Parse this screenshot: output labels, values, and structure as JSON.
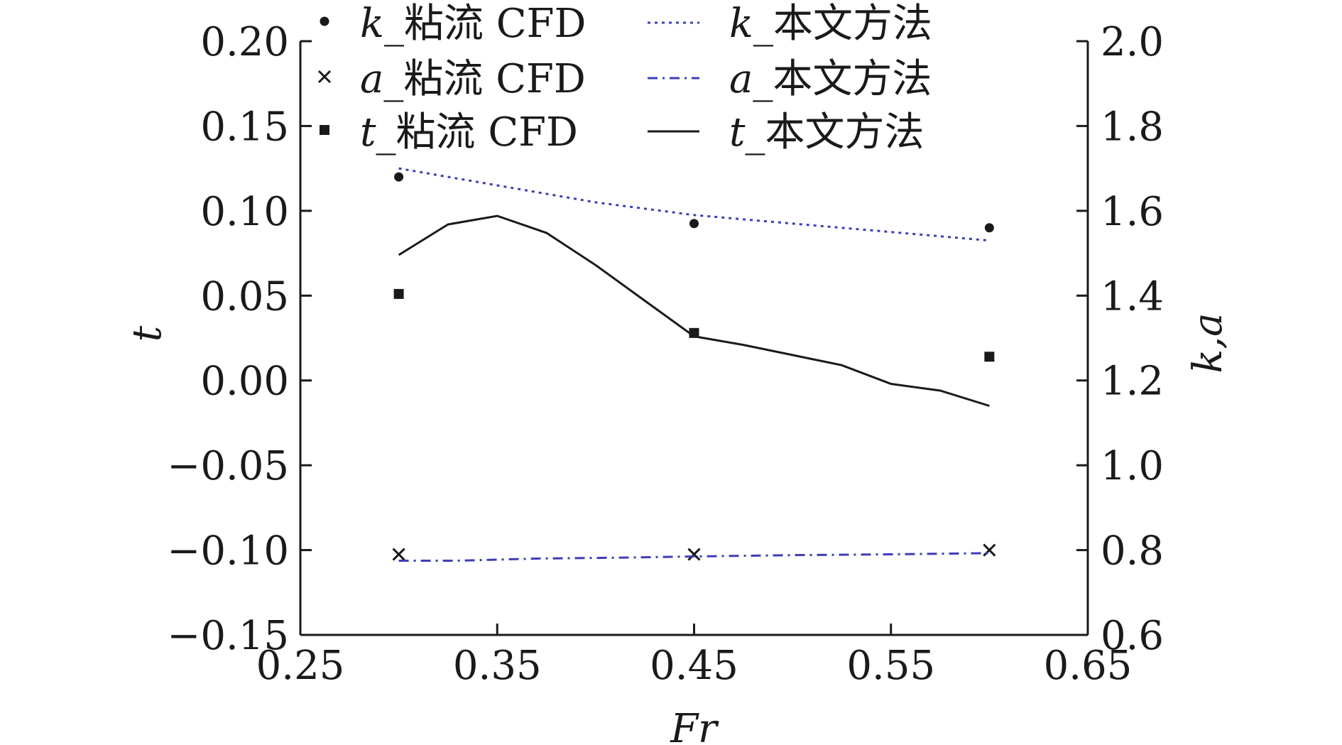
{
  "chart_data": {
    "type": "line",
    "xlabel": "Fr",
    "ylabel_left": "t",
    "ylabel_right": "k,a",
    "xlim": [
      0.25,
      0.65
    ],
    "ylim_left": [
      -0.15,
      0.2
    ],
    "ylim_right": [
      0.6,
      2.0
    ],
    "x_ticks": [
      "0.25",
      "0.35",
      "0.45",
      "0.55",
      "0.65"
    ],
    "y_left_ticks": [
      "0.20",
      "0.15",
      "0.10",
      "0.05",
      "0.00",
      "−0.05",
      "−0.10",
      "−0.15"
    ],
    "y_right_ticks": [
      "2.0",
      "1.8",
      "1.6",
      "1.4",
      "1.2",
      "1.0",
      "0.8",
      "0.6"
    ],
    "grid": false,
    "legend_position": "top",
    "series": [
      {
        "id": "k_cfd",
        "name": "k_粘流 CFD",
        "var": "k",
        "suffix": "_粘流 CFD",
        "kind": "scatter",
        "marker": "circle",
        "axis": "right",
        "color": "#1a1a1a",
        "x": [
          0.3,
          0.45,
          0.6
        ],
        "y": [
          1.68,
          1.57,
          1.56
        ]
      },
      {
        "id": "a_cfd",
        "name": "a_粘流 CFD",
        "var": "a",
        "suffix": "_粘流 CFD",
        "kind": "scatter",
        "marker": "x",
        "axis": "right",
        "color": "#1a1a1a",
        "x": [
          0.3,
          0.45,
          0.6
        ],
        "y": [
          0.79,
          0.79,
          0.8
        ]
      },
      {
        "id": "t_cfd",
        "name": "t_粘流 CFD",
        "var": "t",
        "suffix": "_粘流 CFD",
        "kind": "scatter",
        "marker": "square",
        "axis": "left",
        "color": "#1a1a1a",
        "x": [
          0.3,
          0.45,
          0.6
        ],
        "y": [
          0.051,
          0.028,
          0.014
        ]
      },
      {
        "id": "k_method",
        "name": "k_本文方法",
        "var": "k",
        "suffix": "_本文方法",
        "kind": "line",
        "dash": "dotted",
        "axis": "right",
        "color": "#3d3db8",
        "x": [
          0.3,
          0.35,
          0.4,
          0.45,
          0.5,
          0.55,
          0.6
        ],
        "y": [
          1.7,
          1.66,
          1.62,
          1.59,
          1.57,
          1.55,
          1.53
        ]
      },
      {
        "id": "a_method",
        "name": "a_本文方法",
        "var": "a",
        "suffix": "_本文方法",
        "kind": "line",
        "dash": "dashdot",
        "axis": "right",
        "color": "#3d3db8",
        "x": [
          0.3,
          0.33,
          0.37,
          0.41,
          0.45,
          0.5,
          0.55,
          0.6
        ],
        "y": [
          0.775,
          0.775,
          0.78,
          0.782,
          0.785,
          0.788,
          0.79,
          0.793
        ]
      },
      {
        "id": "t_method",
        "name": "t_本文方法",
        "var": "t",
        "suffix": "_本文方法",
        "kind": "line",
        "dash": "solid",
        "axis": "left",
        "color": "#1a1a1a",
        "x": [
          0.3,
          0.325,
          0.35,
          0.375,
          0.4,
          0.425,
          0.45,
          0.475,
          0.5,
          0.525,
          0.55,
          0.575,
          0.6
        ],
        "y": [
          0.074,
          0.092,
          0.097,
          0.087,
          0.068,
          0.047,
          0.026,
          0.021,
          0.015,
          0.009,
          -0.002,
          -0.006,
          -0.015
        ]
      }
    ]
  }
}
